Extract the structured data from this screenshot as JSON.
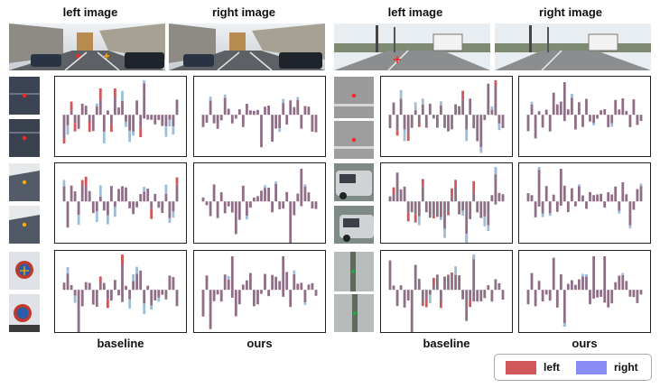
{
  "headers": {
    "left_image": "left image",
    "right_image": "right image"
  },
  "footers": {
    "baseline": "baseline",
    "ours": "ours"
  },
  "legend": {
    "left_label": "left",
    "right_label": "right",
    "left_color": "#d0585a",
    "right_color": "#8a8cf5"
  },
  "colors": {
    "left_bar": "#d0585a",
    "right_bar": "#9dbedb",
    "overlap_bar": "#8e6f86",
    "crosshair_red": "#ff2222",
    "crosshair_orange": "#ffaa00"
  }
}
